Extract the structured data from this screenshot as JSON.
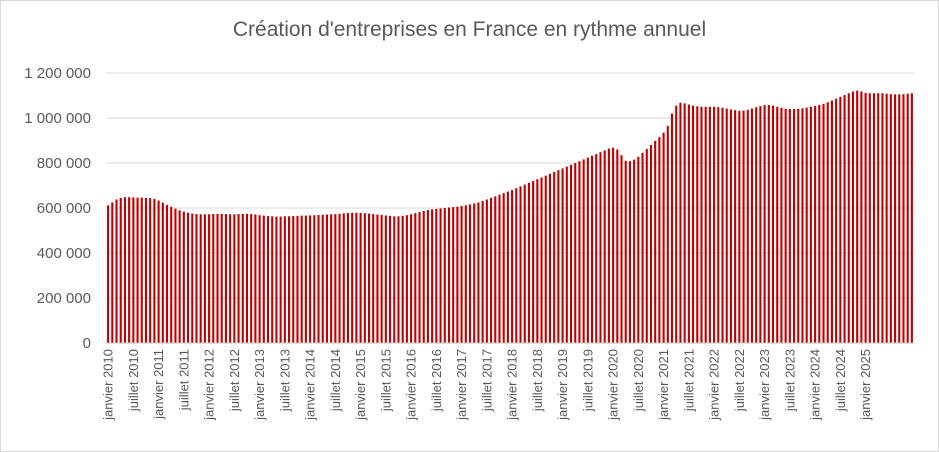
{
  "chart_data": {
    "type": "bar",
    "title": "Création d'entreprises en France en rythme annuel",
    "xlabel": "",
    "ylabel": "",
    "ylim": [
      0,
      1200000
    ],
    "grid": true,
    "legend": "none",
    "bar_color": "#c00000",
    "grid_color": "#d9d9d9",
    "yticks": [
      {
        "value": 0,
        "label": "0"
      },
      {
        "value": 200000,
        "label": "200 000"
      },
      {
        "value": 400000,
        "label": "400 000"
      },
      {
        "value": 600000,
        "label": "600 000"
      },
      {
        "value": 800000,
        "label": "800 000"
      },
      {
        "value": 1000000,
        "label": "1 000 000"
      },
      {
        "value": 1200000,
        "label": "1 200 000"
      }
    ],
    "tick_labels": [
      "janvier 2010",
      "juillet 2010",
      "janvier 2011",
      "juillet 2011",
      "janvier 2012",
      "juillet 2012",
      "janvier 2013",
      "juillet 2013",
      "janvier 2014",
      "juillet 2014",
      "janvier 2015",
      "juillet 2015",
      "janvier 2016",
      "juillet 2016",
      "janvier 2017",
      "juillet 2017",
      "janvier 2018",
      "juillet 2018",
      "janvier 2019",
      "juillet 2019",
      "janvier 2020",
      "juillet 2020",
      "janvier 2021",
      "juillet 2021",
      "janvier 2022",
      "juillet 2022",
      "janvier 2023",
      "juillet 2023",
      "janvier 2024",
      "juillet 2024",
      "janvier 2025"
    ],
    "months_per_tick": 6,
    "values": [
      612000,
      625000,
      638000,
      645000,
      648000,
      648000,
      647000,
      646000,
      646000,
      645000,
      644000,
      640000,
      633000,
      624000,
      614000,
      605000,
      597000,
      590000,
      584000,
      579000,
      575000,
      573000,
      572000,
      572000,
      572000,
      573000,
      574000,
      574000,
      573000,
      572000,
      572000,
      573000,
      574000,
      574000,
      573000,
      571000,
      568000,
      566000,
      564000,
      563000,
      562000,
      562000,
      563000,
      563000,
      564000,
      565000,
      566000,
      566000,
      567000,
      568000,
      569000,
      570000,
      571000,
      572000,
      573000,
      574000,
      576000,
      578000,
      579000,
      579000,
      578000,
      577000,
      575000,
      573000,
      571000,
      569000,
      567000,
      565000,
      563000,
      563000,
      565000,
      568000,
      572000,
      577000,
      582000,
      587000,
      591000,
      594000,
      596000,
      598000,
      600000,
      602000,
      604000,
      606000,
      609000,
      612000,
      616000,
      620000,
      625000,
      631000,
      638000,
      645000,
      652000,
      659000,
      666000,
      673000,
      680000,
      688000,
      696000,
      704000,
      712000,
      720000,
      728000,
      736000,
      744000,
      752000,
      760000,
      768000,
      776000,
      784000,
      792000,
      800000,
      808000,
      816000,
      824000,
      832000,
      840000,
      848000,
      856000,
      864000,
      868000,
      860000,
      835000,
      810000,
      808000,
      815000,
      828000,
      845000,
      862000,
      880000,
      898000,
      915000,
      935000,
      965000,
      1020000,
      1055000,
      1068000,
      1065000,
      1060000,
      1055000,
      1052000,
      1050000,
      1050000,
      1050000,
      1050000,
      1048000,
      1046000,
      1042000,
      1038000,
      1035000,
      1032000,
      1033000,
      1036000,
      1042000,
      1048000,
      1053000,
      1057000,
      1058000,
      1055000,
      1050000,
      1045000,
      1041000,
      1040000,
      1040000,
      1041000,
      1043000,
      1046000,
      1050000,
      1054000,
      1058000,
      1063000,
      1070000,
      1078000,
      1086000,
      1094000,
      1102000,
      1110000,
      1118000,
      1122000,
      1118000,
      1112000,
      1110000,
      1110000,
      1110000,
      1110000,
      1108000,
      1106000,
      1105000,
      1105000,
      1106000,
      1108000,
      1110000
    ]
  }
}
